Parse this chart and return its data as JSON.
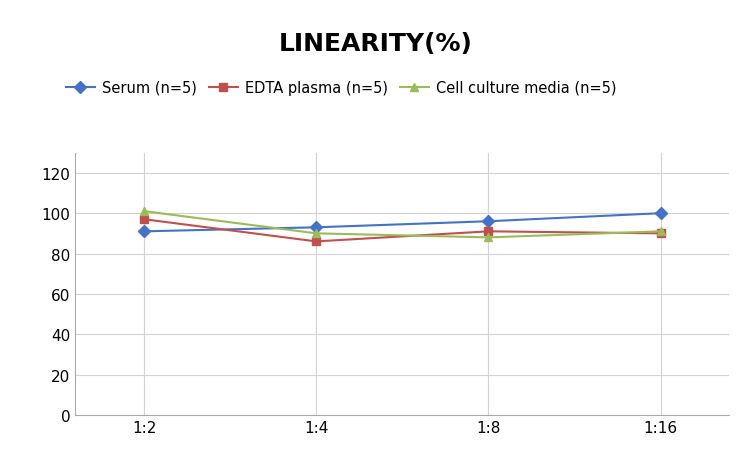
{
  "title": "LINEARITY(%)",
  "x_labels": [
    "1:2",
    "1:4",
    "1:8",
    "1:16"
  ],
  "series": [
    {
      "label": "Serum (n=5)",
      "values": [
        91,
        93,
        96,
        100
      ],
      "color": "#4472C4",
      "marker": "D",
      "marker_face": "#4472C4"
    },
    {
      "label": "EDTA plasma (n=5)",
      "values": [
        97,
        86,
        91,
        90
      ],
      "color": "#C0504D",
      "marker": "s",
      "marker_face": "#C0504D"
    },
    {
      "label": "Cell culture media (n=5)",
      "values": [
        101,
        90,
        88,
        91
      ],
      "color": "#9BBB59",
      "marker": "^",
      "marker_face": "#9BBB59"
    }
  ],
  "ylim": [
    0,
    130
  ],
  "yticks": [
    0,
    20,
    40,
    60,
    80,
    100,
    120
  ],
  "background_color": "#ffffff",
  "title_fontsize": 18,
  "legend_fontsize": 10.5,
  "tick_fontsize": 11
}
